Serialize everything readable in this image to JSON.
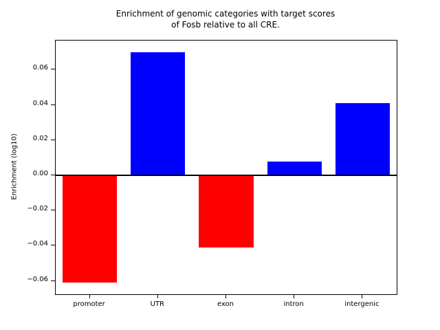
{
  "chart_data": {
    "type": "bar",
    "title": "Enrichment of genomic categories with target scores of Fosb relative to all CRE.",
    "title_lines": [
      "Enrichment of genomic categories with target scores",
      "of Fosb relative to all CRE."
    ],
    "categories": [
      "promoter",
      "UTR",
      "exon",
      "intron",
      "intergenic"
    ],
    "values": [
      -0.061,
      0.07,
      -0.041,
      0.008,
      0.041
    ],
    "colors": [
      "#ff0000",
      "#0000ff",
      "#ff0000",
      "#0000ff",
      "#0000ff"
    ],
    "positive_color": "#0000ff",
    "negative_color": "#ff0000",
    "xlabel": "",
    "ylabel": "Enrichment (log10)",
    "yticks": [
      -0.06,
      -0.04,
      -0.02,
      0.0,
      0.02,
      0.04,
      0.06
    ],
    "ytick_labels": [
      "−0.06",
      "−0.04",
      "−0.02",
      "0.00",
      "0.02",
      "0.04",
      "0.06"
    ],
    "ylim": [
      -0.0676,
      0.0766
    ],
    "zero_line": true,
    "grid": false,
    "legend": null,
    "bar_width_fraction": 0.8,
    "axis_color": "#000000",
    "background_color": "#ffffff"
  }
}
